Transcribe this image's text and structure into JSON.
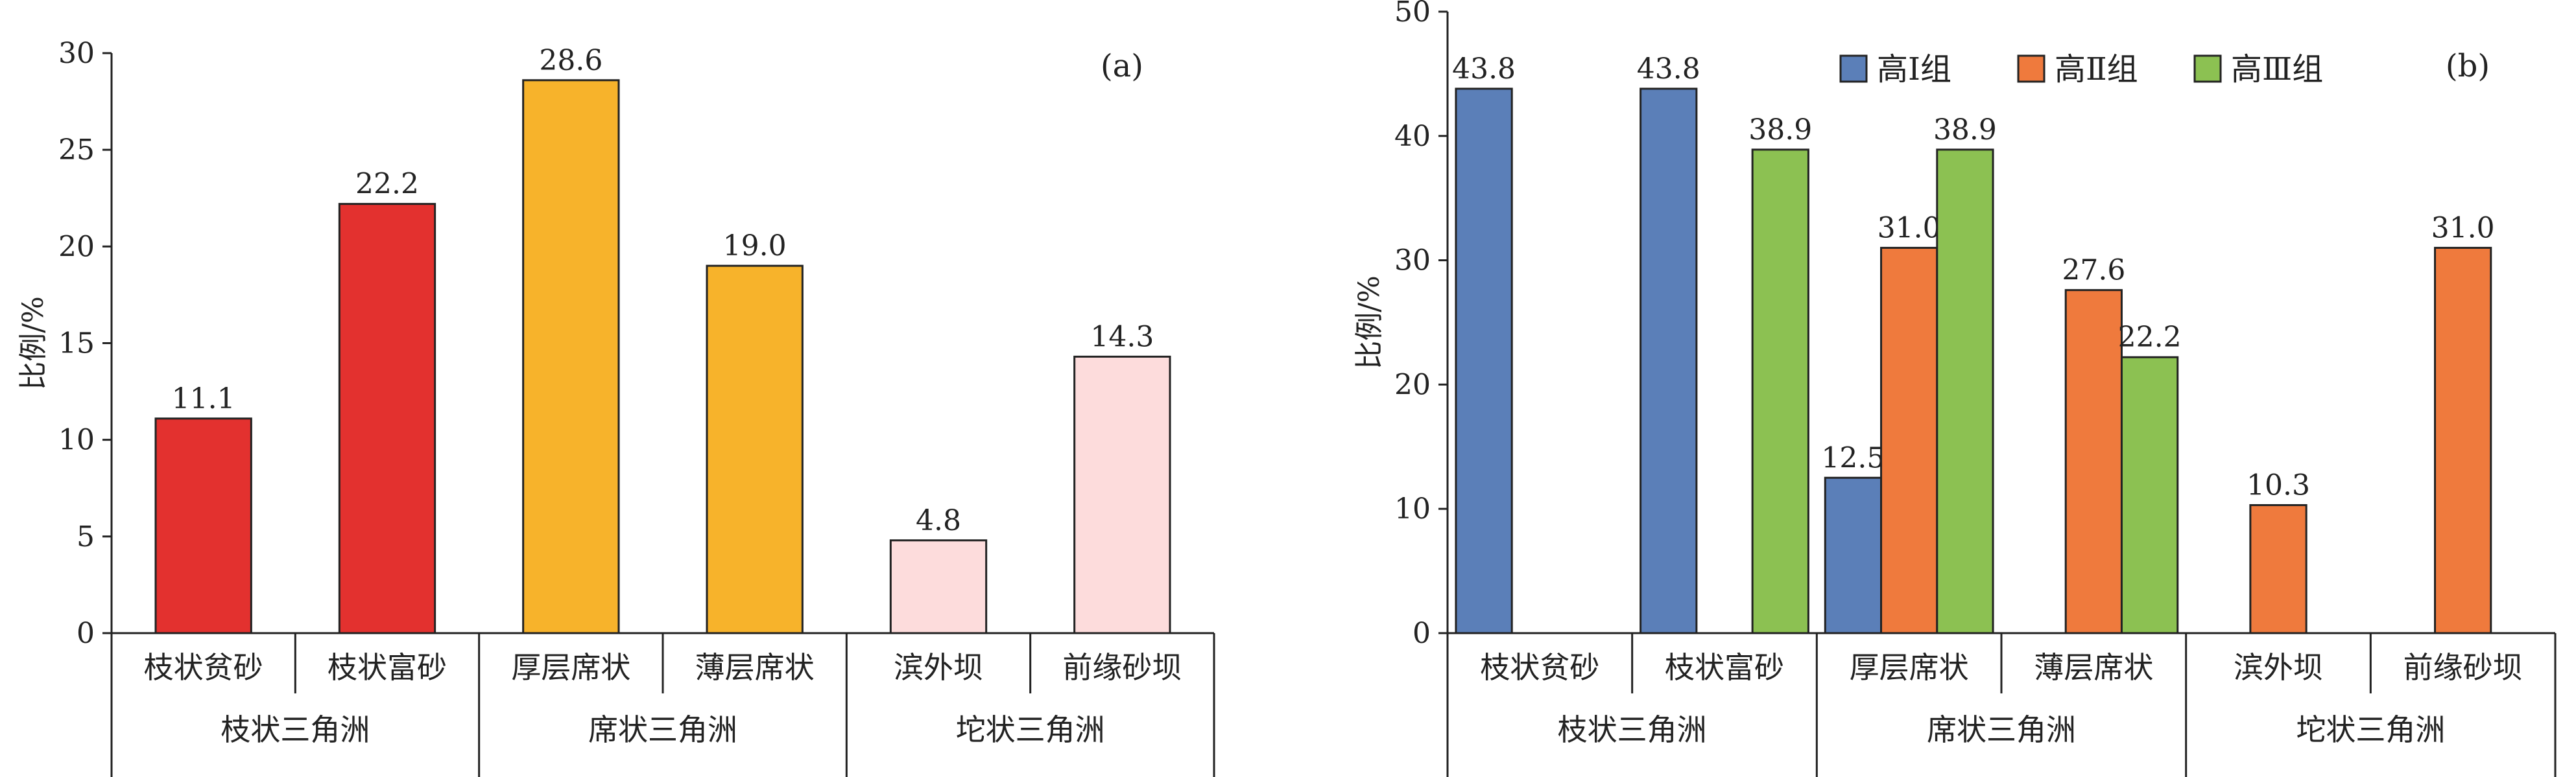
{
  "chart_data": [
    {
      "type": "bar",
      "panel_label": "(a)",
      "ylabel": "比例/%",
      "ylim": [
        0,
        30
      ],
      "yticks": [
        0,
        5,
        10,
        15,
        20,
        25,
        30
      ],
      "categories": [
        "枝状贫砂",
        "枝状富砂",
        "厚层席状",
        "薄层席状",
        "滨外坝",
        "前缘砂坝"
      ],
      "groups": [
        {
          "label": "枝状三角洲",
          "categories": [
            "枝状贫砂",
            "枝状富砂"
          ]
        },
        {
          "label": "席状三角洲",
          "categories": [
            "厚层席状",
            "薄层席状"
          ]
        },
        {
          "label": "坨状三角洲",
          "categories": [
            "滨外坝",
            "前缘砂坝"
          ]
        }
      ],
      "values": [
        11.1,
        22.2,
        28.6,
        19.0,
        4.8,
        14.3
      ],
      "value_labels": [
        "11.1",
        "22.2",
        "28.6",
        "19.0",
        "4.8",
        "14.3"
      ],
      "colors": [
        "#e3312f",
        "#e3312f",
        "#f7b32b",
        "#f7b32b",
        "#fddcdc",
        "#fddcdc"
      ]
    },
    {
      "type": "bar",
      "panel_label": "(b)",
      "ylabel": "比例/%",
      "ylim": [
        0,
        50
      ],
      "yticks": [
        0,
        10,
        20,
        30,
        40,
        50
      ],
      "categories": [
        "枝状贫砂",
        "枝状富砂",
        "厚层席状",
        "薄层席状",
        "滨外坝",
        "前缘砂坝"
      ],
      "groups": [
        {
          "label": "枝状三角洲",
          "categories": [
            "枝状贫砂",
            "枝状富砂"
          ]
        },
        {
          "label": "席状三角洲",
          "categories": [
            "厚层席状",
            "薄层席状"
          ]
        },
        {
          "label": "坨状三角洲",
          "categories": [
            "滨外坝",
            "前缘砂坝"
          ]
        }
      ],
      "legend_position": "top",
      "series": [
        {
          "name": "高Ⅰ组",
          "color": "#5b7fb8",
          "values": [
            43.8,
            43.8,
            12.5,
            null,
            null,
            null
          ],
          "value_labels": [
            "43.8",
            "43.8",
            "12.5",
            "",
            "",
            ""
          ]
        },
        {
          "name": "高Ⅱ组",
          "color": "#ef7a3d",
          "values": [
            null,
            null,
            31.0,
            27.6,
            10.3,
            31.0
          ],
          "value_labels": [
            "",
            "",
            "31.0",
            "27.6",
            "10.3",
            "31.0"
          ]
        },
        {
          "name": "高Ⅲ组",
          "color": "#8cc152",
          "values": [
            null,
            38.9,
            38.9,
            22.2,
            null,
            null
          ],
          "value_labels": [
            "",
            "38.9",
            "38.9",
            "22.2",
            "",
            ""
          ]
        }
      ]
    }
  ]
}
